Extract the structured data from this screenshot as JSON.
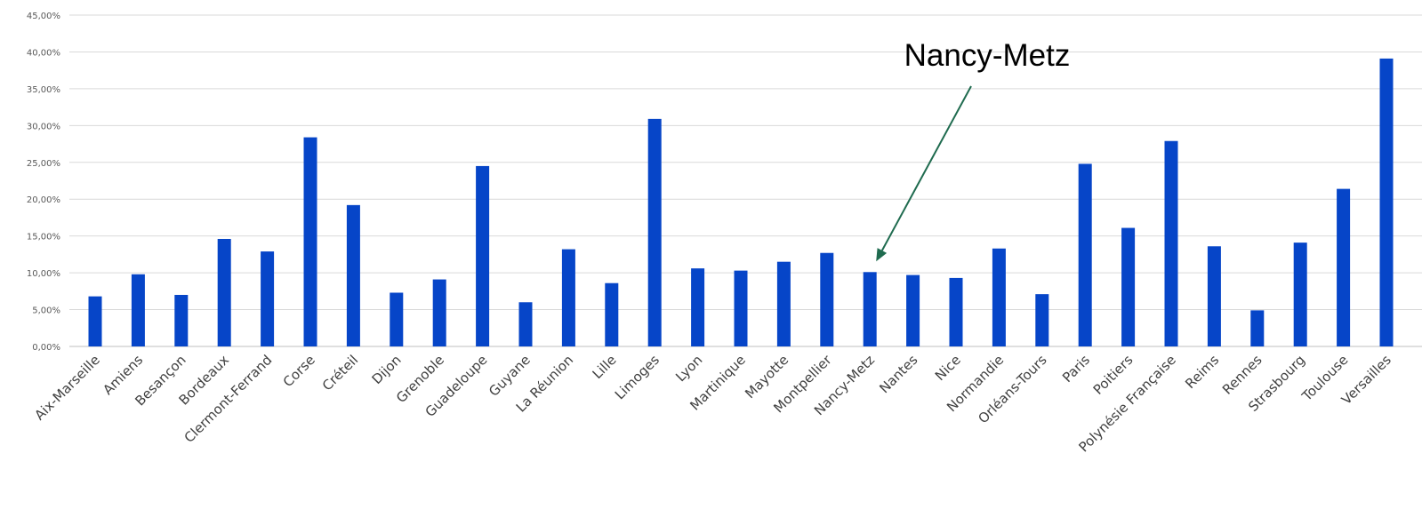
{
  "chart_data": {
    "type": "bar",
    "title": "",
    "xlabel": "",
    "ylabel": "",
    "ylim": [
      0,
      0.45
    ],
    "yticks": [
      "0,00%",
      "5,00%",
      "10,00%",
      "15,00%",
      "20,00%",
      "25,00%",
      "30,00%",
      "35,00%",
      "40,00%",
      "45,00%"
    ],
    "grid": true,
    "bar_color": "#0645C8",
    "categories": [
      "Aix-Marseille",
      "Amiens",
      "Besançon",
      "Bordeaux",
      "Clermont-Ferrand",
      "Corse",
      "Créteil",
      "Dijon",
      "Grenoble",
      "Guadeloupe",
      "Guyane",
      "La Réunion",
      "Lille",
      "Limoges",
      "Lyon",
      "Martinique",
      "Mayotte",
      "Montpellier",
      "Nancy-Metz",
      "Nantes",
      "Nice",
      "Normandie",
      "Orléans-Tours",
      "Paris",
      "Poitiers",
      "Polynésie Française",
      "Reims",
      "Rennes",
      "Strasbourg",
      "Toulouse",
      "Versailles"
    ],
    "values": [
      0.068,
      0.098,
      0.07,
      0.146,
      0.129,
      0.284,
      0.192,
      0.073,
      0.091,
      0.245,
      0.06,
      0.132,
      0.086,
      0.309,
      0.106,
      0.103,
      0.115,
      0.127,
      0.101,
      0.097,
      0.093,
      0.133,
      0.071,
      0.248,
      0.161,
      0.279,
      0.136,
      0.049,
      0.141,
      0.214,
      0.391
    ],
    "annotation": {
      "text": "Nancy-Metz",
      "target": "Nancy-Metz",
      "arrow_color": "#1F6B4F"
    }
  }
}
